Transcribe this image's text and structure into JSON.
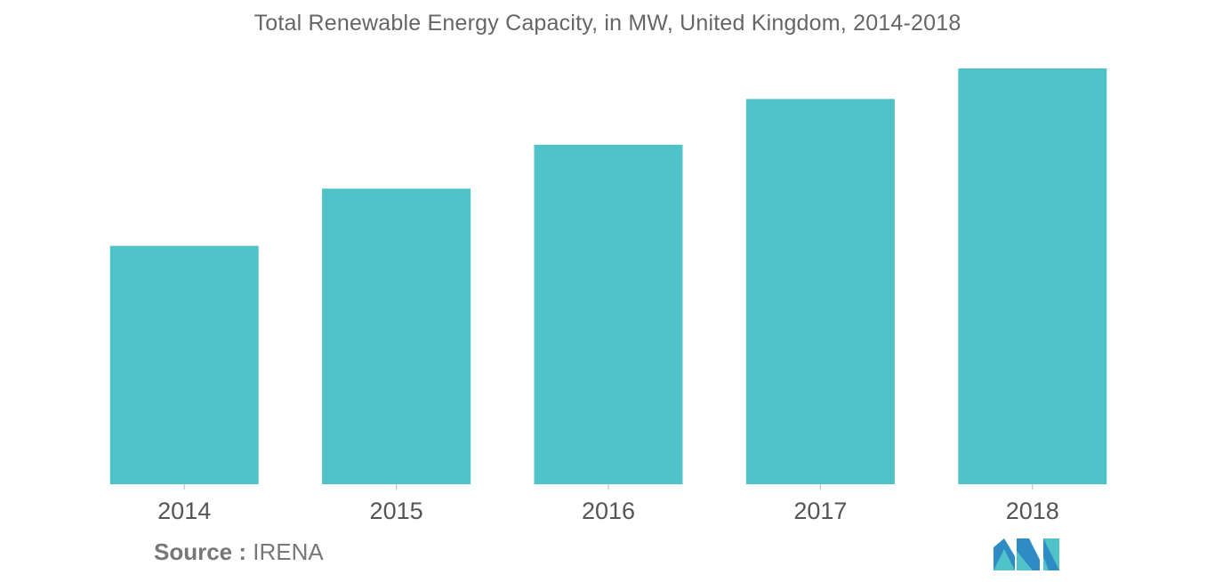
{
  "chart_data": {
    "type": "bar",
    "title": "Total Renewable Energy Capacity, in MW, United Kingdom, 2014-2018",
    "xlabel": "",
    "ylabel": "",
    "categories": [
      "2014",
      "2015",
      "2016",
      "2017",
      "2018"
    ],
    "values": [
      25000,
      31000,
      35600,
      40400,
      43600
    ],
    "ylim": [
      0,
      45000
    ],
    "grid": false,
    "legend": "none",
    "bar_color": "#50c3c9"
  },
  "footer": {
    "source_label": "Source :",
    "source_value": "IRENA"
  },
  "logo": {
    "icon": "mordor-intelligence-logo",
    "colors": [
      "#2e8bc4",
      "#50c3c9"
    ]
  }
}
